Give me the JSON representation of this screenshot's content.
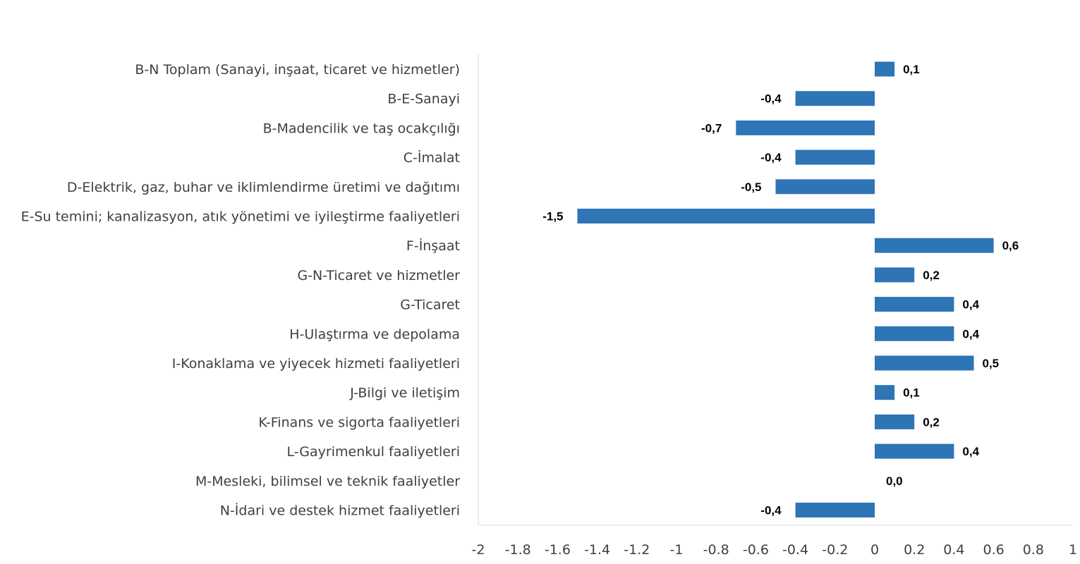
{
  "chart_data": {
    "type": "bar",
    "orientation": "horizontal",
    "title": "",
    "xlabel": "",
    "ylabel": "",
    "categories": [
      "B-N Toplam (Sanayi, inşaat, ticaret ve hizmetler)",
      "B-E-Sanayi",
      "B-Madencilik ve taş ocakçılığı",
      "C-İmalat",
      "D-Elektrik, gaz, buhar ve iklimlendirme üretimi ve dağıtımı",
      "E-Su temini; kanalizasyon, atık yönetimi ve iyileştirme faaliyetleri",
      "F-İnşaat",
      "G-N-Ticaret ve hizmetler",
      "G-Ticaret",
      "H-Ulaştırma ve depolama",
      "I-Konaklama ve yiyecek hizmeti faaliyetleri",
      "J-Bilgi ve iletişim",
      "K-Finans ve sigorta faaliyetleri",
      "L-Gayrimenkul faaliyetleri",
      "M-Mesleki, bilimsel ve teknik faaliyetler",
      "N-İdari ve destek hizmet faaliyetleri"
    ],
    "values": [
      0.1,
      -0.4,
      -0.7,
      -0.4,
      -0.5,
      -1.5,
      0.6,
      0.2,
      0.4,
      0.4,
      0.5,
      0.1,
      0.2,
      0.4,
      0.0,
      -0.4
    ],
    "data_labels": [
      "0,1",
      "-0,4",
      "-0,7",
      "-0,4",
      "-0,5",
      "-1,5",
      "0,6",
      "0,2",
      "0,4",
      "0,4",
      "0,5",
      "0,1",
      "0,2",
      "0,4",
      "0,0",
      "-0,4"
    ],
    "xlim": [
      -2,
      1
    ],
    "xticks": [
      -2,
      -1.8,
      -1.6,
      -1.4,
      -1.2,
      -1,
      -0.8,
      -0.6,
      -0.4,
      -0.2,
      0,
      0.2,
      0.4,
      0.6,
      0.8,
      1
    ],
    "xtick_labels": [
      "-2",
      "-1.8",
      "-1.6",
      "-1.4",
      "-1.2",
      "-1",
      "-0.8",
      "-0.6",
      "-0.4",
      "-0.2",
      "0",
      "0.2",
      "0.4",
      "0.6",
      "0.8",
      "1"
    ],
    "grid": false,
    "legend": "none",
    "bar_color": "#2E75B6",
    "axis_color": "#D9D9D9"
  }
}
